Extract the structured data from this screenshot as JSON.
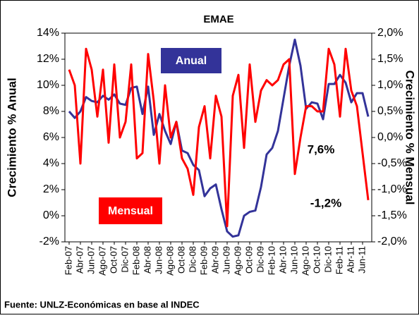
{
  "chart_data": {
    "type": "line",
    "title": "EMAE",
    "y_label": "Crecimiento % Anual",
    "y2_label": "Crecimiento % Mensual",
    "source": "Fuente: UNLZ-Económicas en base al INDEC",
    "categories": [
      "Feb-07",
      null,
      "Abr-07",
      null,
      "Jun-07",
      null,
      "Ago-07",
      null,
      "Oct-07",
      null,
      "Dic-07",
      null,
      "Feb-08",
      null,
      "Abr-08",
      null,
      "Jun-08",
      null,
      "Ago-08",
      null,
      "Oct-08",
      null,
      "Dic-08",
      null,
      "Feb-09",
      null,
      "Abr-09",
      null,
      "Jun-09",
      null,
      "Ago-09",
      null,
      "Oct-09",
      null,
      "Dic-09",
      null,
      "Feb-10",
      null,
      "Abr-10",
      null,
      "Jun-10",
      null,
      "Ago-10",
      null,
      "Oct-10",
      null,
      "Dic-10",
      null,
      "Feb-11",
      null,
      "Abr-11",
      null,
      "Jun-11",
      null
    ],
    "series": [
      {
        "name": "Anual",
        "color": "#333399",
        "axis": "y",
        "values": [
          8.0,
          7.5,
          8.0,
          9.1,
          8.8,
          8.7,
          9.2,
          8.9,
          9.3,
          8.6,
          8.5,
          9.8,
          9.9,
          7.8,
          9.9,
          6.2,
          7.8,
          6.5,
          5.5,
          7.2,
          5.0,
          4.8,
          3.9,
          3.5,
          1.5,
          2.1,
          2.4,
          0.5,
          -1.2,
          -1.6,
          -1.5,
          0.0,
          0.3,
          0.4,
          2.2,
          4.7,
          5.2,
          6.5,
          9.0,
          11.5,
          13.5,
          11.5,
          8.2,
          8.7,
          8.6,
          7.4,
          10.1,
          10.1,
          10.8,
          10.2,
          8.7,
          9.4,
          9.4,
          7.6
        ]
      },
      {
        "name": "Mensual",
        "color": "#ff0000",
        "axis": "y2",
        "values": [
          1.3,
          1.0,
          -0.5,
          1.7,
          1.3,
          0.4,
          1.3,
          -0.1,
          1.4,
          0.0,
          0.3,
          1.4,
          -0.4,
          -0.3,
          1.6,
          0.7,
          -0.5,
          1.0,
          0.0,
          0.3,
          -0.4,
          -0.6,
          -1.1,
          0.2,
          0.6,
          -0.4,
          0.8,
          0.4,
          -1.7,
          0.8,
          1.2,
          -0.2,
          1.4,
          0.3,
          0.9,
          1.1,
          1.0,
          1.1,
          1.4,
          1.5,
          -0.7,
          0.0,
          0.6,
          0.6,
          0.5,
          0.5,
          1.7,
          1.4,
          0.4,
          1.7,
          0.9,
          0.6,
          -0.3,
          -1.2
        ]
      }
    ],
    "annotations": [
      "7,6%",
      "-1,2%"
    ],
    "ylim": [
      -2,
      14
    ],
    "yticks": [
      {
        "value": -2,
        "label": "-2%"
      },
      {
        "value": 0,
        "label": "0%"
      },
      {
        "value": 2,
        "label": "2%"
      },
      {
        "value": 4,
        "label": "4%"
      },
      {
        "value": 6,
        "label": "6%"
      },
      {
        "value": 8,
        "label": "8%"
      },
      {
        "value": 10,
        "label": "10%"
      },
      {
        "value": 12,
        "label": "12%"
      },
      {
        "value": 14,
        "label": "14%"
      }
    ],
    "y2lim": [
      -2,
      2
    ],
    "y2ticks": [
      {
        "value": -2,
        "label": "-2,0%"
      },
      {
        "value": -1.5,
        "label": "-1,5%"
      },
      {
        "value": -1,
        "label": "-1,0%"
      },
      {
        "value": -0.5,
        "label": "-0,5%"
      },
      {
        "value": 0,
        "label": "0,0%"
      },
      {
        "value": 0.5,
        "label": "0,5%"
      },
      {
        "value": 1,
        "label": "1,0%"
      },
      {
        "value": 1.5,
        "label": "1,5%"
      },
      {
        "value": 2,
        "label": "2,0%"
      }
    ],
    "grid": false
  }
}
